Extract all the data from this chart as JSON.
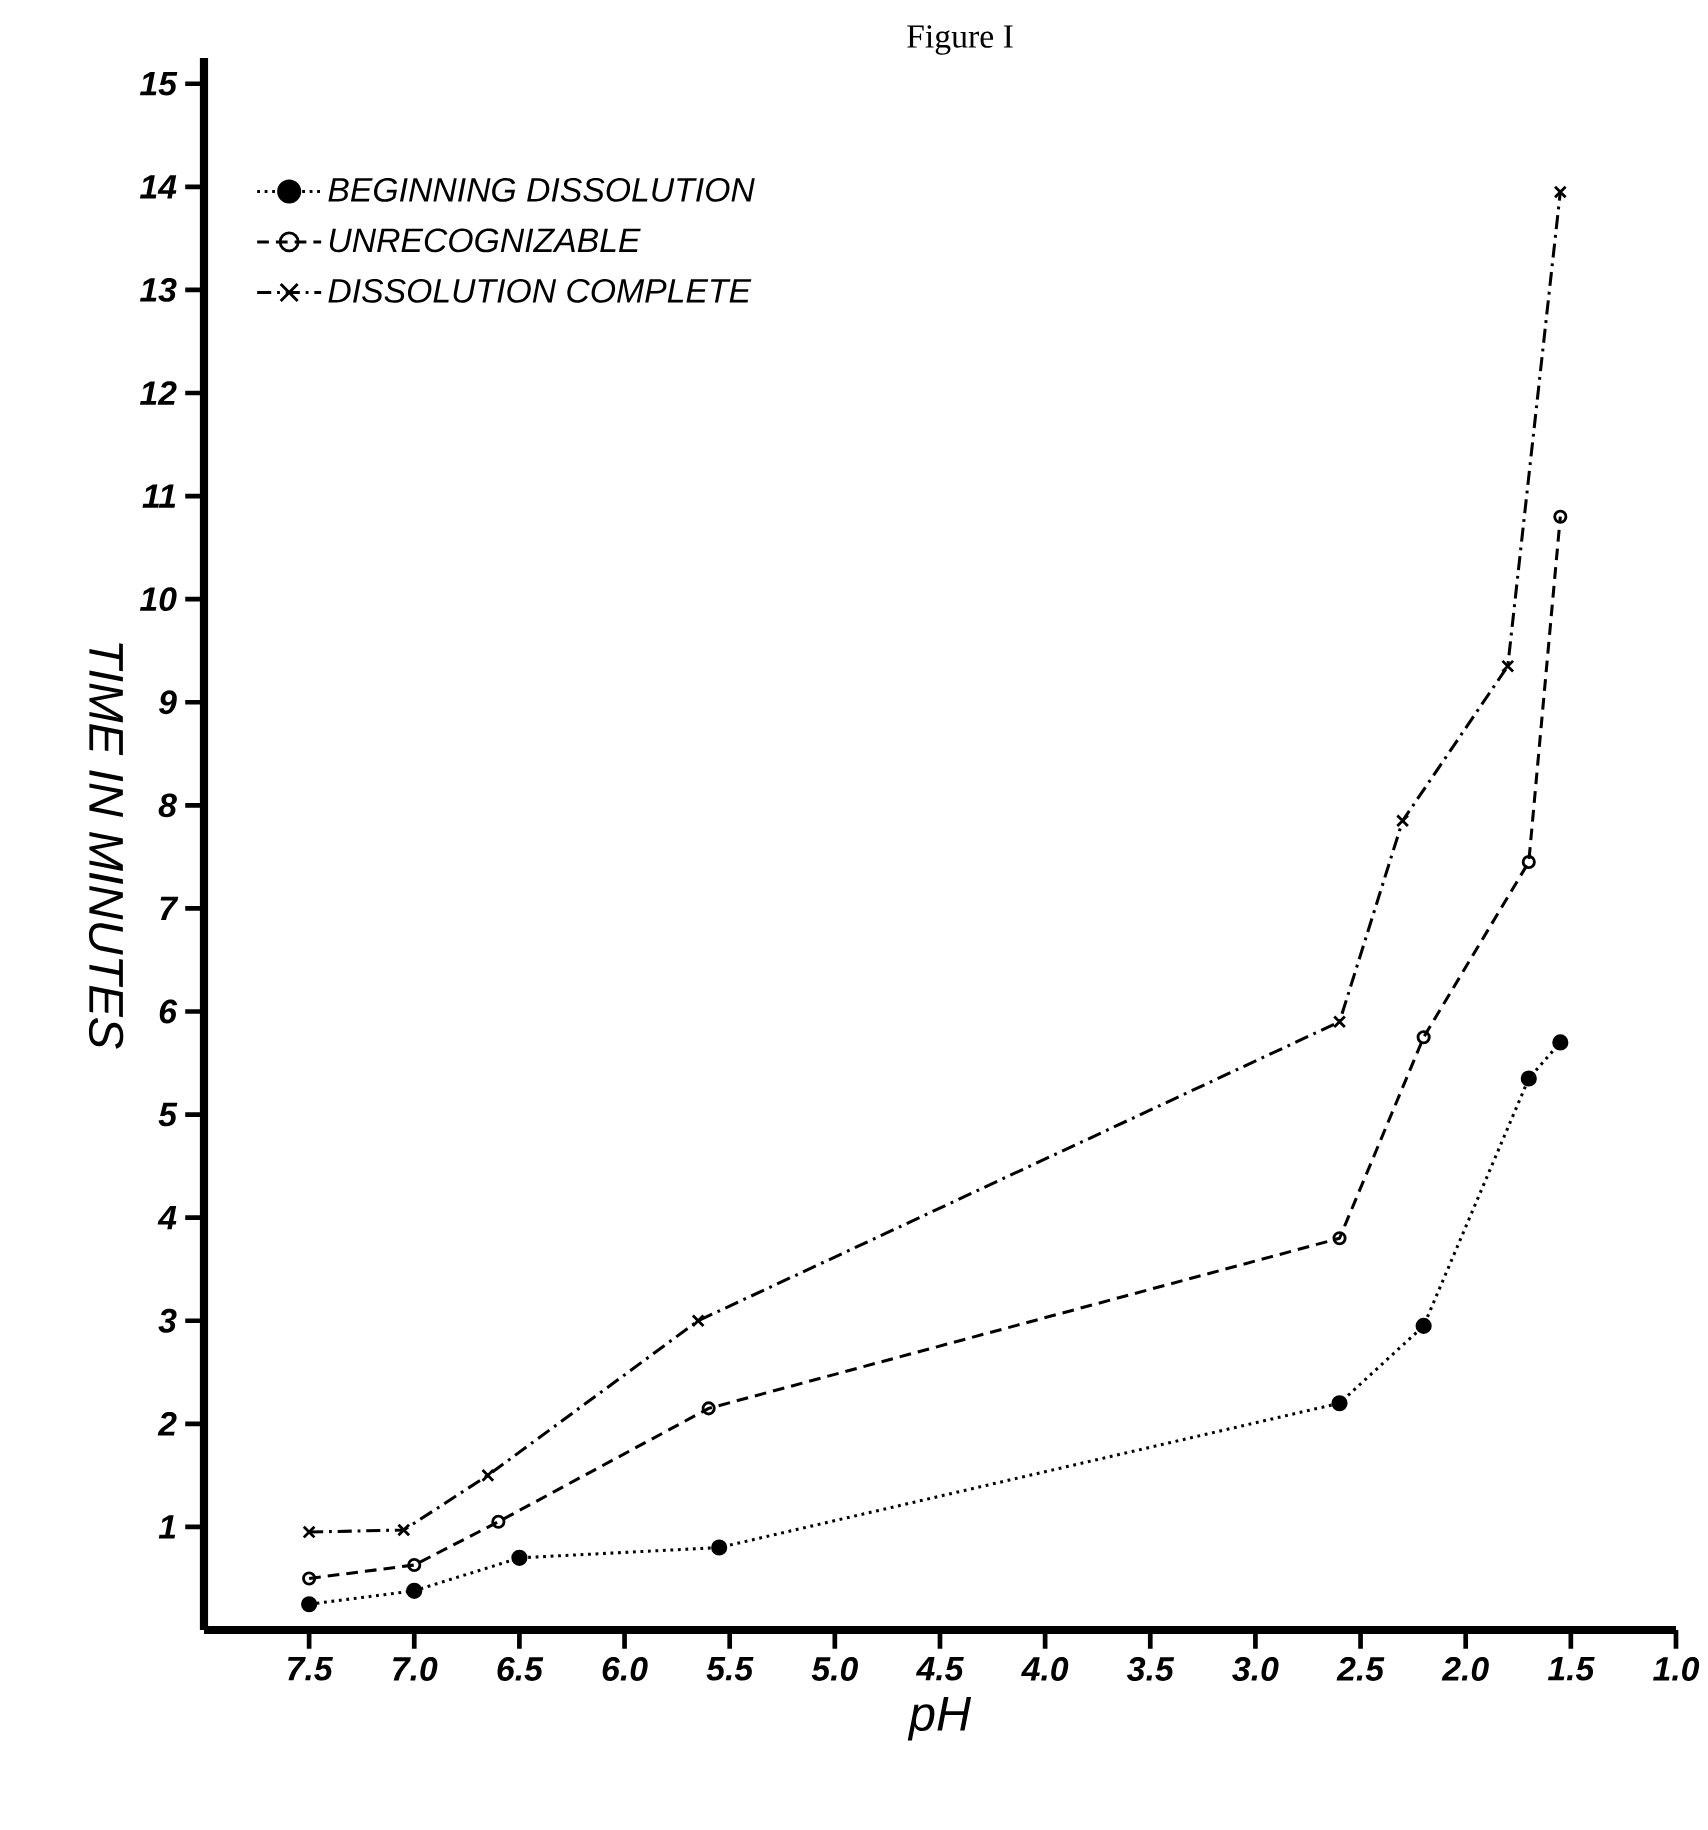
{
  "chart_data": {
    "type": "line",
    "title": "Figure I",
    "xlabel": "pH",
    "ylabel": "TIME IN MINUTES",
    "xlim": [
      8.0,
      1.0
    ],
    "ylim": [
      0,
      15.25
    ],
    "xticks": [
      {
        "value": 7.5,
        "label": "7.5"
      },
      {
        "value": 7.0,
        "label": "7.0"
      },
      {
        "value": 6.5,
        "label": "6.5"
      },
      {
        "value": 6.0,
        "label": "6.0"
      },
      {
        "value": 5.5,
        "label": "5.5"
      },
      {
        "value": 5.0,
        "label": "5.0"
      },
      {
        "value": 4.5,
        "label": "4.5"
      },
      {
        "value": 4.0,
        "label": "4.0"
      },
      {
        "value": 3.5,
        "label": "3.5"
      },
      {
        "value": 3.0,
        "label": "3.0"
      },
      {
        "value": 2.5,
        "label": "2.5"
      },
      {
        "value": 2.0,
        "label": "2.0"
      },
      {
        "value": 1.5,
        "label": "1.5"
      },
      {
        "value": 1.0,
        "label": "1.0"
      }
    ],
    "yticks": [
      1,
      2,
      3,
      4,
      5,
      6,
      7,
      8,
      9,
      10,
      11,
      12,
      13,
      14,
      15
    ],
    "legend": "top left",
    "grid": false,
    "series": [
      {
        "name": "BEGINNING DISSOLUTION",
        "color": "#000000",
        "marker": "circle",
        "line_style": "dotted",
        "x": [
          7.5,
          7.0,
          6.5,
          5.55,
          2.6,
          2.2,
          1.7,
          1.55
        ],
        "values": [
          0.25,
          0.38,
          0.7,
          0.8,
          2.2,
          2.95,
          5.35,
          5.7
        ]
      },
      {
        "name": "UNRECOGNIZABLE",
        "color": "#000000",
        "marker": "open circle",
        "line_style": "dashed",
        "x": [
          7.5,
          7.0,
          6.6,
          5.6,
          2.6,
          2.2,
          1.7,
          1.55
        ],
        "values": [
          0.5,
          0.63,
          1.05,
          2.15,
          3.8,
          5.75,
          7.45,
          10.8
        ]
      },
      {
        "name": "DISSOLUTION COMPLETE",
        "color": "#000000",
        "marker": "cross",
        "line_style": "dashdot",
        "x": [
          7.5,
          7.05,
          6.65,
          5.65,
          2.6,
          2.3,
          1.8,
          1.55
        ],
        "values": [
          0.95,
          0.97,
          1.5,
          3.0,
          5.9,
          7.85,
          9.35,
          13.95
        ]
      }
    ]
  }
}
